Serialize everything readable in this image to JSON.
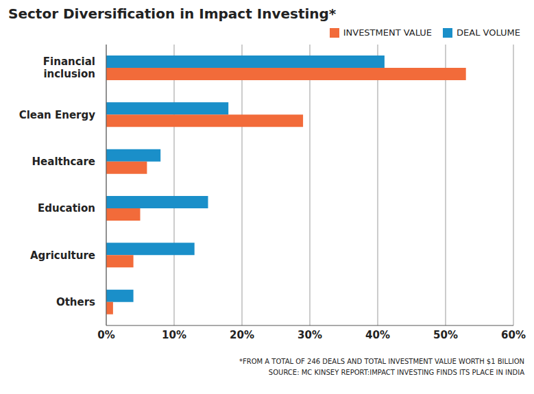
{
  "chart_data": {
    "type": "bar",
    "orientation": "horizontal",
    "title": "Sector Diversification in Impact Investing*",
    "categories": [
      "Financial inclusion",
      "Clean Energy",
      "Healthcare",
      "Education",
      "Agriculture",
      "Others"
    ],
    "series": [
      {
        "name": "INVESTMENT VALUE",
        "color": "#f26b3a",
        "values": [
          53,
          29,
          6,
          5,
          4,
          1
        ]
      },
      {
        "name": "DEAL VOLUME",
        "color": "#1a8fc9",
        "values": [
          41,
          18,
          8,
          15,
          13,
          4
        ]
      }
    ],
    "xlim": [
      0,
      60
    ],
    "xticks": [
      {
        "value": 0,
        "label": "0%"
      },
      {
        "value": 10,
        "label": "10%"
      },
      {
        "value": 20,
        "label": "20%"
      },
      {
        "value": 30,
        "label": "30%"
      },
      {
        "value": 40,
        "label": "40%"
      },
      {
        "value": 50,
        "label": "50%"
      },
      {
        "value": 60,
        "label": "60%"
      }
    ],
    "grid": true,
    "legend": "top-right",
    "footnote": "*FROM A TOTAL OF 246 DEALS AND TOTAL INVESTMENT VALUE WORTH $1 BILLION",
    "source": "SOURCE: MC KINSEY REPORT:IMPACT INVESTING FINDS ITS PLACE IN INDIA"
  }
}
